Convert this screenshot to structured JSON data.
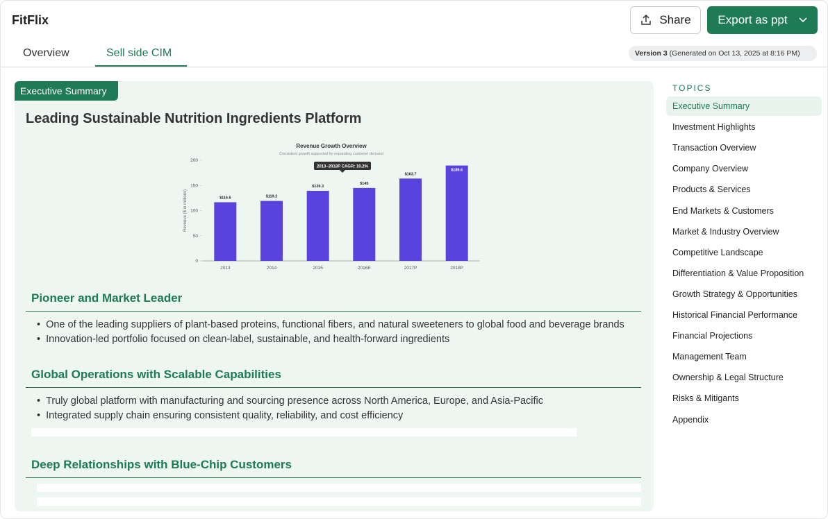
{
  "header": {
    "brand": "FitFlix",
    "share": "Share",
    "export": "Export as ppt"
  },
  "tabs": [
    "Overview",
    "Sell side CIM"
  ],
  "version": {
    "label": "Version 3",
    "generated": "(Generated on Oct 13, 2025 at 8:16 PM)"
  },
  "content": {
    "tag": "Executive Summary",
    "title": "Leading Sustainable Nutrition Ingredients Platform",
    "sections": [
      {
        "heading": "Pioneer and Market Leader",
        "bullets": [
          "One of the leading suppliers of plant-based proteins, functional fibers, and natural sweeteners to global food and beverage brands",
          "Innovation-led portfolio focused on clean-label, sustainable, and health-forward ingredients"
        ]
      },
      {
        "heading": "Global Operations with Scalable Capabilities",
        "bullets": [
          "Truly global platform with manufacturing and sourcing presence across North America, Europe, and Asia-Pacific",
          "Integrated supply chain ensuring consistent quality, reliability, and cost efficiency"
        ]
      },
      {
        "heading": "Deep Relationships with Blue-Chip Customers",
        "bullets": []
      }
    ]
  },
  "chart_data": {
    "type": "bar",
    "title": "Revenue Growth Overview",
    "subtitle": "Consistent growth supported by expanding customer demand",
    "annotation": "2013–2018P CAGR: 10.2%",
    "y_label": "Revenue ($ in millions)",
    "categories": [
      "2013",
      "2014",
      "2015",
      "2016E",
      "2017P",
      "2018P"
    ],
    "values": [
      116.6,
      119.2,
      139.3,
      145,
      163.7,
      189.6
    ],
    "value_labels": [
      "$116.6",
      "$119.2",
      "$139.3",
      "$145",
      "$163.7",
      "$189.6"
    ],
    "color": "#5a43dc",
    "ylim": [
      0,
      200
    ],
    "yticks": [
      0,
      50,
      100,
      150,
      200
    ]
  },
  "topics": {
    "title": "TOPICS",
    "items": [
      "Executive Summary",
      "Investment Highlights",
      "Transaction Overview",
      "Company Overview",
      "Products & Services",
      "End Markets & Customers",
      "Market & Industry Overview",
      "Competitive Landscape",
      "Differentiation & Value Proposition",
      "Growth Strategy & Opportunities",
      "Historical Financial Performance",
      "Financial Projections",
      "Management Team",
      "Ownership & Legal Structure",
      "Risks & Mitigants",
      "Appendix"
    ]
  }
}
